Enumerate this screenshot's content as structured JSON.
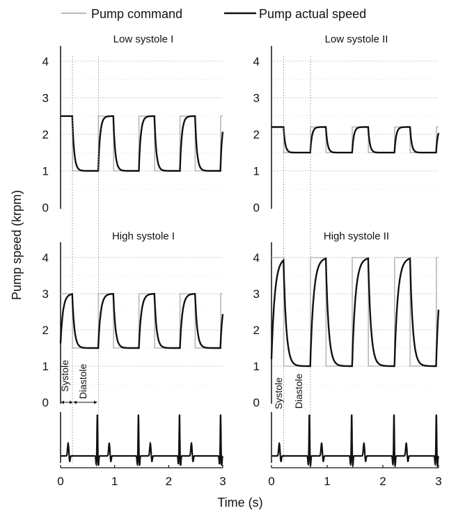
{
  "legend": {
    "command": "Pump command",
    "actual": "Pump actual speed",
    "command_color": "#b8b8b8",
    "actual_color": "#111111"
  },
  "ylabel": "Pump speed (krpm)",
  "xlabel": "Time (s)",
  "chart_data": [
    {
      "type": "line",
      "title": "Low  systole I",
      "xlim": [
        0,
        3
      ],
      "ylim": [
        0,
        4
      ],
      "yticks": [
        "0",
        "1",
        "2",
        "3",
        "4"
      ],
      "grid": "horizontal dotted",
      "series": [
        {
          "name": "Pump command",
          "style": "step",
          "x": [
            0,
            0.22,
            0.22,
            0.7,
            0.7,
            0.98,
            0.98,
            1.45,
            1.45,
            1.74,
            1.74,
            2.21,
            2.21,
            2.49,
            2.49,
            2.96,
            2.96,
            3.0
          ],
          "y": [
            2.5,
            2.5,
            1.0,
            1.0,
            2.5,
            2.5,
            1.0,
            1.0,
            2.5,
            2.5,
            1.0,
            1.0,
            2.5,
            2.5,
            1.0,
            1.0,
            2.5,
            2.5
          ]
        },
        {
          "name": "Pump actual speed",
          "command": {
            "high": 2.5,
            "low": 1.0,
            "periods": [
              [
                0.22,
                0.7
              ],
              [
                0.98,
                1.45
              ],
              [
                1.74,
                2.21
              ],
              [
                2.49,
                2.96
              ]
            ]
          },
          "start": 2.5,
          "tau_rise": 0.035,
          "tau_fall": 0.035
        }
      ]
    },
    {
      "type": "line",
      "title": "Low  systole II",
      "xlim": [
        0,
        3
      ],
      "ylim": [
        0,
        4
      ],
      "yticks": [
        "0",
        "1",
        "2",
        "3",
        "4"
      ],
      "grid": "horizontal dotted",
      "series": [
        {
          "name": "Pump command",
          "style": "step",
          "x": [
            0,
            0.22,
            0.22,
            0.7,
            0.7,
            0.98,
            0.98,
            1.45,
            1.45,
            1.74,
            1.74,
            2.21,
            2.21,
            2.49,
            2.49,
            2.96,
            2.96,
            3.0
          ],
          "y": [
            2.2,
            2.2,
            1.5,
            1.5,
            2.2,
            2.2,
            1.5,
            1.5,
            2.2,
            2.2,
            1.5,
            1.5,
            2.2,
            2.2,
            1.5,
            1.5,
            2.2,
            2.2
          ]
        },
        {
          "name": "Pump actual speed",
          "command": {
            "high": 2.2,
            "low": 1.5,
            "periods": [
              [
                0.22,
                0.7
              ],
              [
                0.98,
                1.45
              ],
              [
                1.74,
                2.21
              ],
              [
                2.49,
                2.96
              ]
            ]
          },
          "start": 2.2,
          "tau_rise": 0.03,
          "tau_fall": 0.03
        }
      ]
    },
    {
      "type": "line",
      "title": "High systole I",
      "xlim": [
        0,
        3
      ],
      "ylim": [
        0,
        4
      ],
      "yticks": [
        "0",
        "1",
        "2",
        "3",
        "4"
      ],
      "grid": "horizontal dotted",
      "annotations": [
        "Systole",
        "Diastole"
      ],
      "series": [
        {
          "name": "Pump command",
          "style": "step",
          "x": [
            0,
            0.22,
            0.22,
            0.7,
            0.7,
            0.98,
            0.98,
            1.45,
            1.45,
            1.74,
            1.74,
            2.21,
            2.21,
            2.49,
            2.49,
            2.96,
            2.96,
            3.0
          ],
          "y": [
            3.0,
            3.0,
            1.5,
            1.5,
            3.0,
            3.0,
            1.5,
            1.5,
            3.0,
            3.0,
            1.5,
            1.5,
            3.0,
            3.0,
            1.5,
            1.5,
            3.0,
            3.0
          ]
        },
        {
          "name": "Pump actual speed",
          "command": {
            "high": 3.0,
            "low": 1.5,
            "periods": [
              [
                0.22,
                0.7
              ],
              [
                0.98,
                1.45
              ],
              [
                1.74,
                2.21
              ],
              [
                2.49,
                2.96
              ]
            ]
          },
          "start": 1.5,
          "tau_rise": 0.045,
          "tau_fall": 0.04
        }
      ]
    },
    {
      "type": "line",
      "title": "High systole II",
      "xlim": [
        0,
        3
      ],
      "ylim": [
        0,
        4
      ],
      "yticks": [
        "0",
        "1",
        "2",
        "3",
        "4"
      ],
      "grid": "horizontal dotted",
      "annotations": [
        "Systole",
        "Diastole"
      ],
      "series": [
        {
          "name": "Pump command",
          "style": "step",
          "x": [
            0,
            0.22,
            0.22,
            0.7,
            0.7,
            0.98,
            0.98,
            1.45,
            1.45,
            1.74,
            1.74,
            2.21,
            2.21,
            2.49,
            2.49,
            2.96,
            2.96,
            3.0
          ],
          "y": [
            4.0,
            4.0,
            1.0,
            1.0,
            4.0,
            4.0,
            1.0,
            1.0,
            4.0,
            4.0,
            1.0,
            1.0,
            4.0,
            4.0,
            1.0,
            1.0,
            4.0,
            4.0
          ]
        },
        {
          "name": "Pump actual speed",
          "command": {
            "high": 4.0,
            "low": 1.0,
            "periods": [
              [
                0.22,
                0.7
              ],
              [
                0.98,
                1.45
              ],
              [
                1.74,
                2.21
              ],
              [
                2.49,
                2.96
              ]
            ]
          },
          "start": 1.0,
          "tau_rise": 0.06,
          "tau_fall": 0.05
        }
      ]
    },
    {
      "type": "line",
      "signal": "ECG",
      "xlim": [
        0,
        3
      ],
      "xticks": [
        "0",
        "1",
        "2",
        "3"
      ],
      "r_peaks": [
        0.68,
        1.44,
        2.2,
        2.96
      ]
    },
    {
      "type": "line",
      "signal": "ECG",
      "xlim": [
        0,
        3
      ],
      "xticks": [
        "0",
        "1",
        "2",
        "3"
      ],
      "r_peaks": [
        0.68,
        1.44,
        2.2,
        2.96
      ]
    }
  ]
}
